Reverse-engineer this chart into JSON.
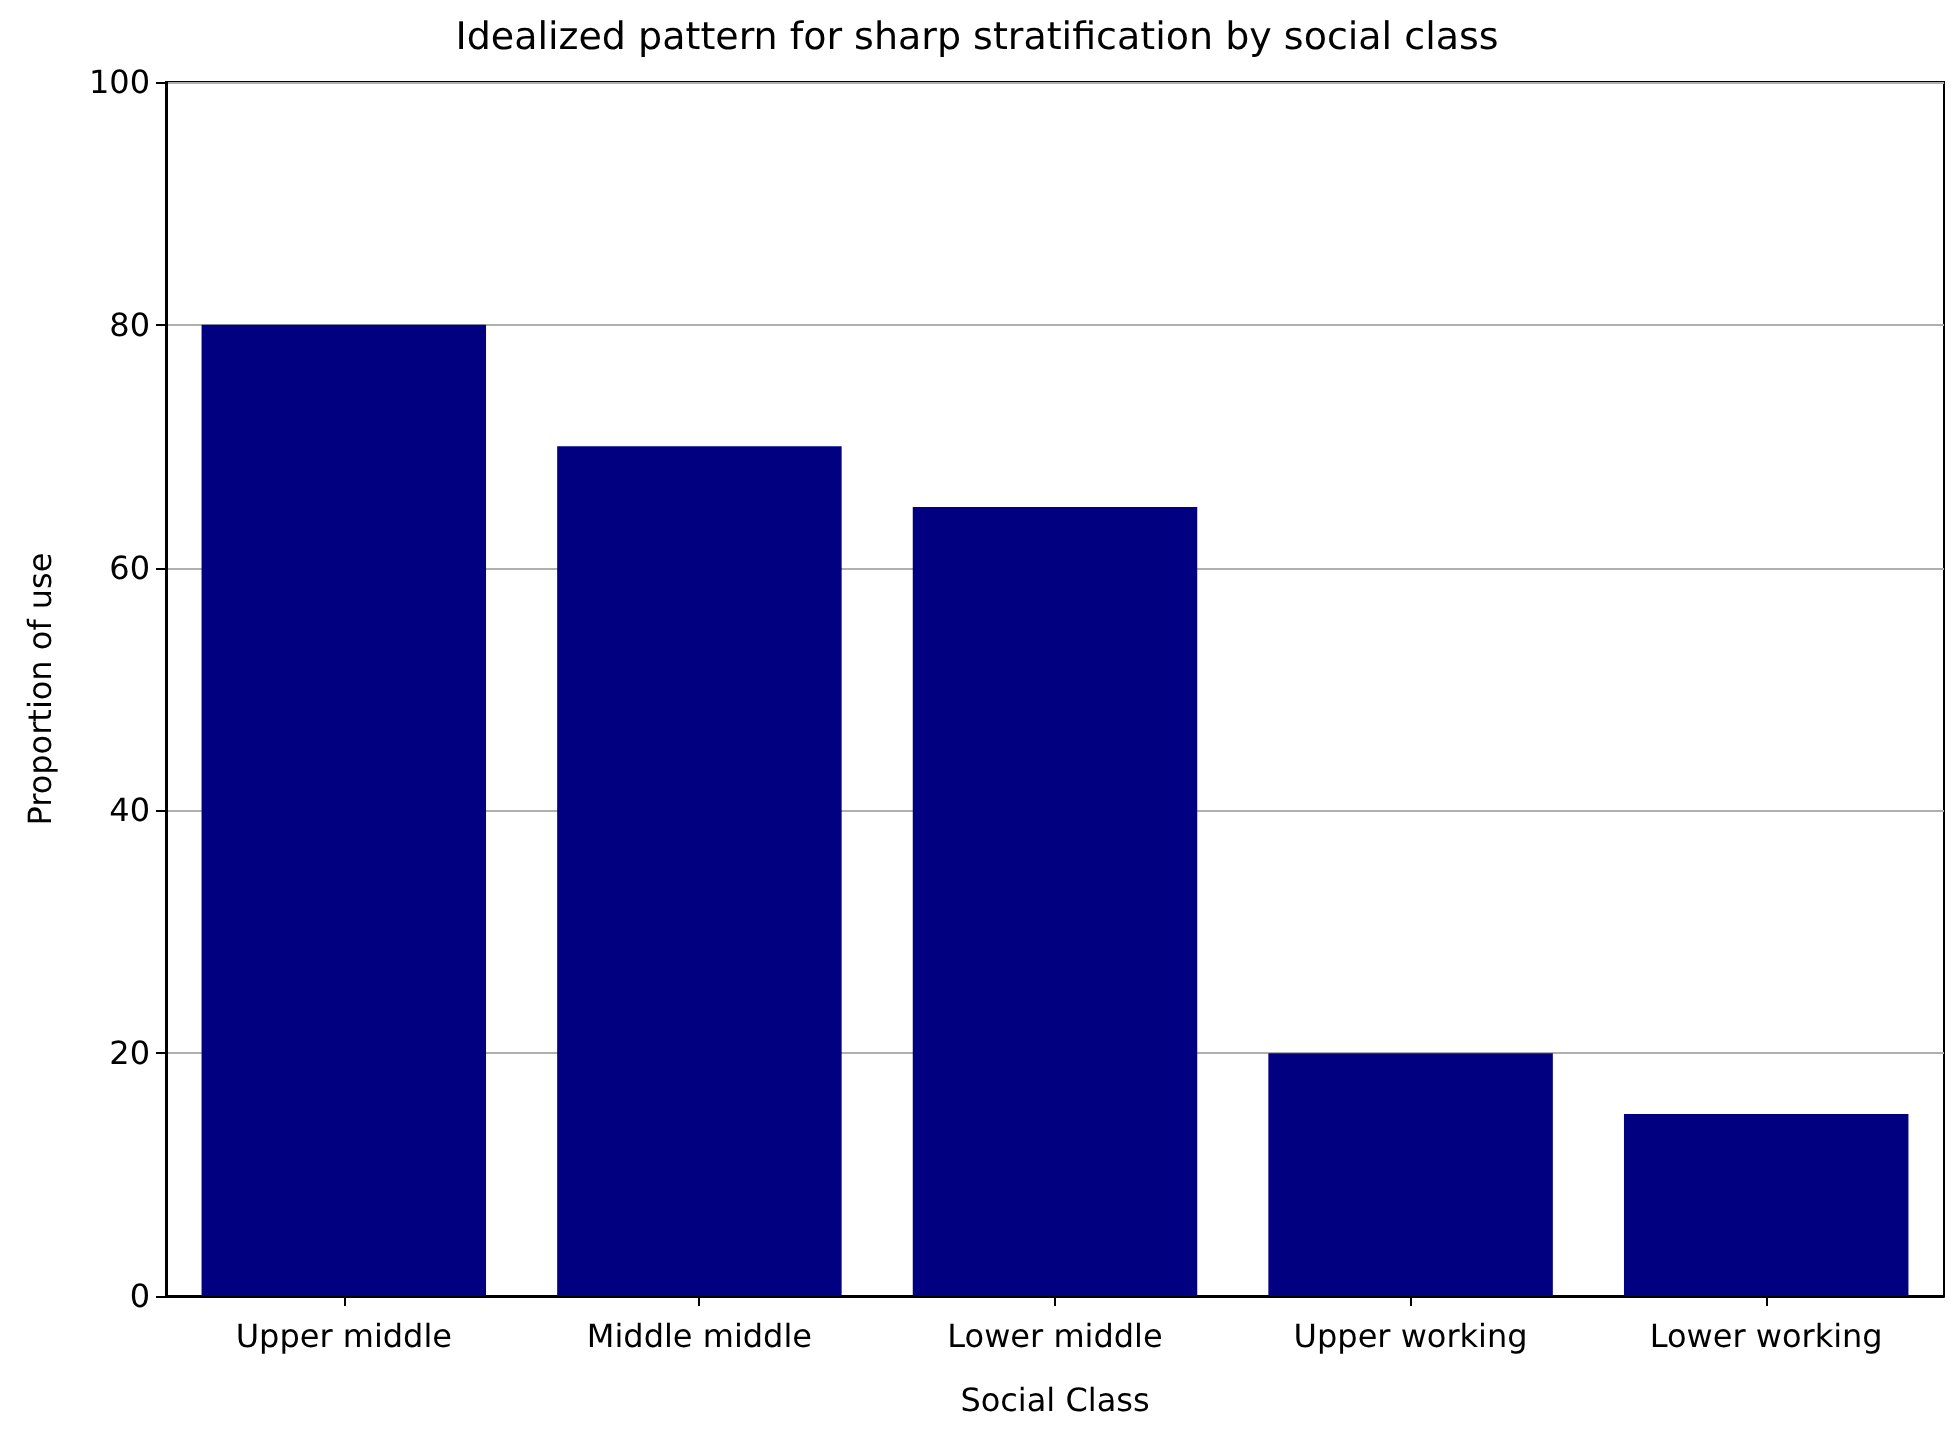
{
  "chart_data": {
    "type": "bar",
    "title": "Idealized pattern for sharp stratification by social class",
    "xlabel": "Social Class",
    "ylabel": "Proportion of use",
    "categories": [
      "Upper middle",
      "Middle middle",
      "Lower middle",
      "Upper working",
      "Lower working"
    ],
    "values": [
      80,
      70,
      65,
      20,
      15
    ],
    "color": "#000080",
    "ylim": [
      0,
      100
    ],
    "yticks": [
      0,
      20,
      40,
      60,
      80,
      100
    ],
    "grid": "y"
  }
}
